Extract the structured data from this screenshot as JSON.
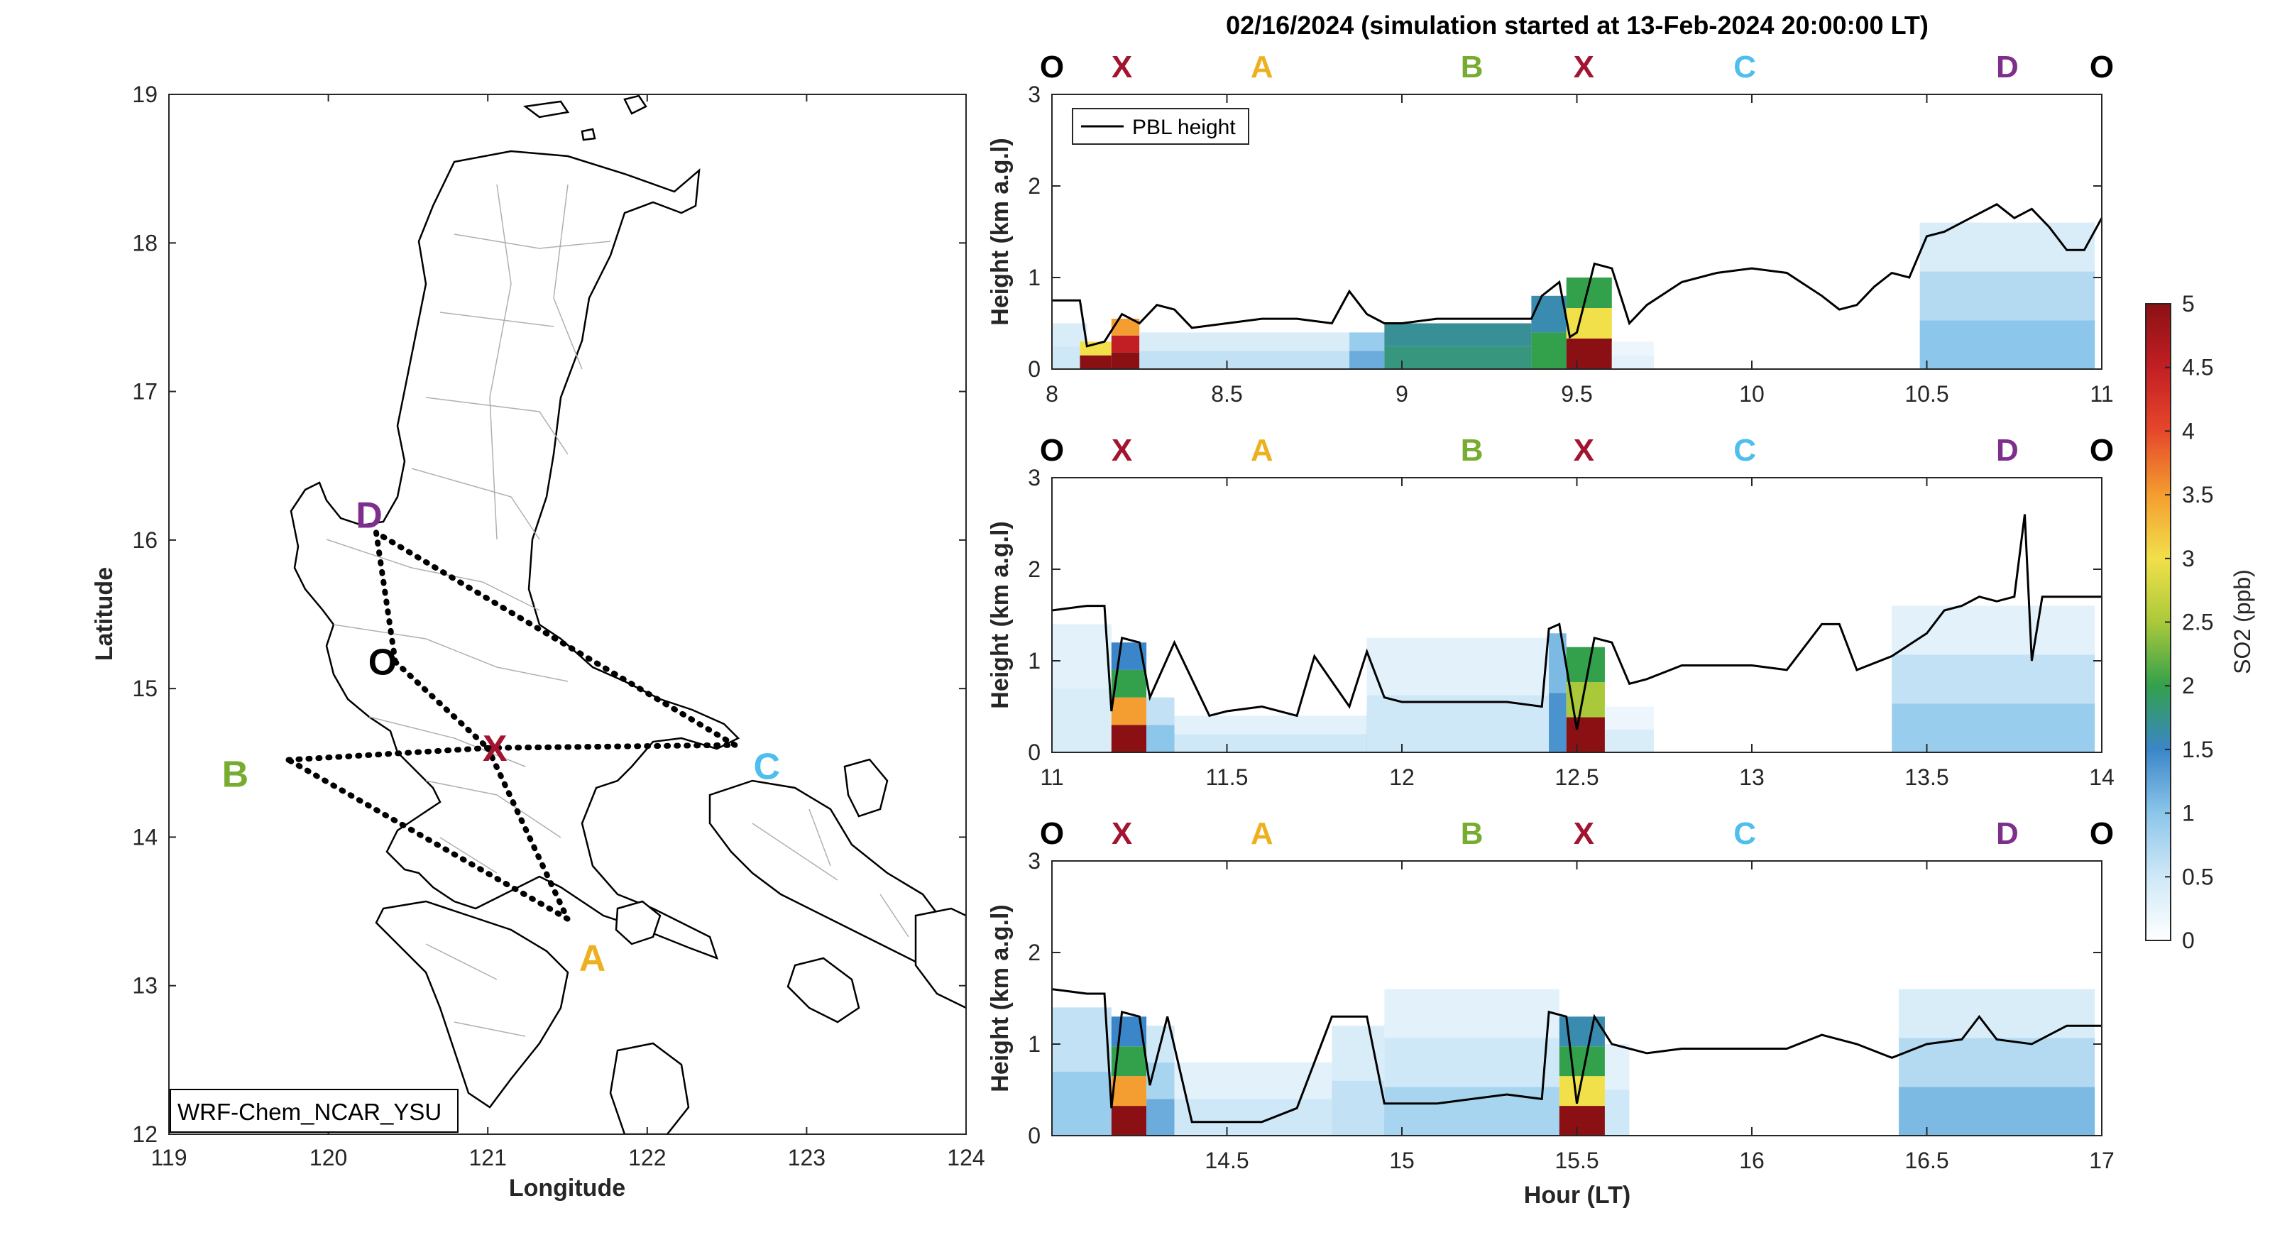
{
  "title": "02/16/2024 (simulation started at 13-Feb-2024 20:00:00 LT)",
  "colors": {
    "O": "#000000",
    "X": "#a2142f",
    "A": "#edb120",
    "B": "#77ac30",
    "C": "#4dbeee",
    "D": "#7e2f8e",
    "pbl": "#000000"
  },
  "map": {
    "xlabel": "Longitude",
    "ylabel": "Latitude",
    "xlim": [
      119,
      124
    ],
    "ylim": [
      12,
      19
    ],
    "xticks": [
      119,
      120,
      121,
      122,
      123,
      124
    ],
    "yticks": [
      12,
      13,
      14,
      15,
      16,
      17,
      18,
      19
    ],
    "model_label": "WRF-Chem_NCAR_YSU",
    "points": [
      {
        "id": "O",
        "label": "O",
        "lon": 120.42,
        "lat": 15.18
      },
      {
        "id": "X",
        "label": "X",
        "lon": 121.0,
        "lat": 14.6
      },
      {
        "id": "A",
        "label": "A",
        "lon": 121.5,
        "lat": 13.45
      },
      {
        "id": "B",
        "label": "B",
        "lon": 119.75,
        "lat": 14.52
      },
      {
        "id": "C",
        "label": "C",
        "lon": 122.55,
        "lat": 14.62
      },
      {
        "id": "D",
        "label": "D",
        "lon": 120.3,
        "lat": 16.05
      }
    ],
    "route": [
      "O",
      "X",
      "A",
      "B",
      "X",
      "C",
      "D",
      "O"
    ]
  },
  "chart_data": [
    {
      "type": "heatmap",
      "ylabel": "Height (km a.g.l)",
      "xlim": [
        8,
        11
      ],
      "ylim": [
        0,
        3
      ],
      "xticks": [
        8,
        8.5,
        9,
        9.5,
        10,
        10.5,
        11
      ],
      "yticks": [
        0,
        1,
        2,
        3
      ],
      "legend": {
        "label": "PBL height",
        "placement": "top-left"
      },
      "route_labels": [
        {
          "label": "O",
          "x": 8.0
        },
        {
          "label": "X",
          "x": 8.2
        },
        {
          "label": "A",
          "x": 8.6
        },
        {
          "label": "B",
          "x": 9.2
        },
        {
          "label": "X",
          "x": 9.52
        },
        {
          "label": "C",
          "x": 9.98
        },
        {
          "label": "D",
          "x": 10.73
        },
        {
          "label": "O",
          "x": 11.0
        }
      ],
      "pbl": {
        "x": [
          8.0,
          8.08,
          8.1,
          8.15,
          8.2,
          8.25,
          8.3,
          8.35,
          8.4,
          8.5,
          8.6,
          8.7,
          8.8,
          8.85,
          8.9,
          8.95,
          9.0,
          9.1,
          9.2,
          9.3,
          9.37,
          9.4,
          9.45,
          9.48,
          9.5,
          9.55,
          9.6,
          9.65,
          9.7,
          9.8,
          9.9,
          10.0,
          10.1,
          10.2,
          10.25,
          10.3,
          10.35,
          10.4,
          10.45,
          10.5,
          10.55,
          10.6,
          10.65,
          10.7,
          10.75,
          10.8,
          10.85,
          10.9,
          10.95,
          11.0
        ],
        "y": [
          0.75,
          0.75,
          0.25,
          0.3,
          0.6,
          0.5,
          0.7,
          0.65,
          0.45,
          0.5,
          0.55,
          0.55,
          0.5,
          0.85,
          0.6,
          0.5,
          0.5,
          0.55,
          0.55,
          0.55,
          0.55,
          0.8,
          0.95,
          0.35,
          0.4,
          1.15,
          1.1,
          0.5,
          0.7,
          0.95,
          1.05,
          1.1,
          1.05,
          0.8,
          0.65,
          0.7,
          0.9,
          1.05,
          1.0,
          1.45,
          1.5,
          1.6,
          1.7,
          1.8,
          1.65,
          1.75,
          1.55,
          1.3,
          1.3,
          1.65
        ]
      },
      "so2_blocks": [
        {
          "x0": 8.0,
          "x1": 8.1,
          "ztop": 0.5,
          "values": [
            0.5,
            0.4
          ]
        },
        {
          "x0": 8.08,
          "x1": 8.17,
          "ztop": 0.3,
          "values": [
            5,
            3
          ]
        },
        {
          "x0": 8.17,
          "x1": 8.25,
          "ztop": 0.55,
          "values": [
            5,
            4.5,
            3.5
          ]
        },
        {
          "x0": 8.25,
          "x1": 8.85,
          "ztop": 0.4,
          "values": [
            0.6,
            0.4
          ]
        },
        {
          "x0": 8.85,
          "x1": 8.95,
          "ztop": 0.4,
          "values": [
            1.2,
            0.9
          ]
        },
        {
          "x0": 8.95,
          "x1": 9.37,
          "ztop": 0.5,
          "values": [
            1.8,
            1.7
          ]
        },
        {
          "x0": 9.37,
          "x1": 9.47,
          "ztop": 0.8,
          "values": [
            2,
            1.6
          ]
        },
        {
          "x0": 9.47,
          "x1": 9.6,
          "ztop": 1.0,
          "values": [
            5,
            3,
            2
          ]
        },
        {
          "x0": 9.6,
          "x1": 9.72,
          "ztop": 0.3,
          "values": [
            0.3,
            0.2
          ]
        },
        {
          "x0": 10.48,
          "x1": 10.98,
          "ztop": 1.6,
          "values": [
            1.0,
            0.7,
            0.4
          ]
        }
      ]
    },
    {
      "type": "heatmap",
      "ylabel": "Height (km a.g.l)",
      "xlim": [
        11,
        14
      ],
      "ylim": [
        0,
        3
      ],
      "xticks": [
        11,
        11.5,
        12,
        12.5,
        13,
        13.5,
        14
      ],
      "yticks": [
        0,
        1,
        2,
        3
      ],
      "route_labels": [
        {
          "label": "O",
          "x": 11.0
        },
        {
          "label": "X",
          "x": 11.2
        },
        {
          "label": "A",
          "x": 11.6
        },
        {
          "label": "B",
          "x": 12.2
        },
        {
          "label": "X",
          "x": 12.52
        },
        {
          "label": "C",
          "x": 12.98
        },
        {
          "label": "D",
          "x": 13.73
        },
        {
          "label": "O",
          "x": 14.0
        }
      ],
      "pbl": {
        "x": [
          11.0,
          11.1,
          11.15,
          11.17,
          11.2,
          11.25,
          11.28,
          11.35,
          11.45,
          11.5,
          11.6,
          11.7,
          11.75,
          11.85,
          11.9,
          11.95,
          12.0,
          12.1,
          12.2,
          12.3,
          12.4,
          12.42,
          12.45,
          12.5,
          12.55,
          12.6,
          12.65,
          12.7,
          12.8,
          12.9,
          13.0,
          13.1,
          13.2,
          13.25,
          13.3,
          13.4,
          13.5,
          13.55,
          13.6,
          13.65,
          13.7,
          13.75,
          13.78,
          13.8,
          13.83,
          13.9,
          14.0
        ],
        "y": [
          1.55,
          1.6,
          1.6,
          0.45,
          1.25,
          1.2,
          0.6,
          1.2,
          0.4,
          0.45,
          0.5,
          0.4,
          1.05,
          0.5,
          1.1,
          0.6,
          0.55,
          0.55,
          0.55,
          0.55,
          0.5,
          1.35,
          1.4,
          0.25,
          1.25,
          1.2,
          0.75,
          0.8,
          0.95,
          0.95,
          0.95,
          0.9,
          1.4,
          1.4,
          0.9,
          1.05,
          1.3,
          1.55,
          1.6,
          1.7,
          1.65,
          1.7,
          2.6,
          1.0,
          1.7,
          1.7,
          1.7
        ]
      },
      "so2_blocks": [
        {
          "x0": 11.0,
          "x1": 11.17,
          "ztop": 1.4,
          "values": [
            0.4,
            0.3
          ]
        },
        {
          "x0": 11.17,
          "x1": 11.27,
          "ztop": 1.2,
          "values": [
            5,
            3.5,
            2,
            1.5
          ]
        },
        {
          "x0": 11.27,
          "x1": 11.35,
          "ztop": 0.6,
          "values": [
            1.0,
            0.6
          ]
        },
        {
          "x0": 11.35,
          "x1": 11.9,
          "ztop": 0.4,
          "values": [
            0.5,
            0.3
          ]
        },
        {
          "x0": 11.9,
          "x1": 12.42,
          "ztop": 0.5,
          "values": [
            1.4,
            1.1
          ]
        },
        {
          "x0": 11.9,
          "x1": 12.42,
          "ztop": 1.25,
          "values": [
            0.5,
            0.3
          ]
        },
        {
          "x0": 12.42,
          "x1": 12.47,
          "ztop": 1.3,
          "values": [
            1.4,
            1.1
          ]
        },
        {
          "x0": 12.47,
          "x1": 12.58,
          "ztop": 1.15,
          "values": [
            5,
            2.5,
            2
          ]
        },
        {
          "x0": 12.58,
          "x1": 12.72,
          "ztop": 0.5,
          "values": [
            0.4,
            0.2
          ]
        },
        {
          "x0": 13.4,
          "x1": 13.98,
          "ztop": 1.6,
          "values": [
            0.9,
            0.6,
            0.3
          ]
        }
      ]
    },
    {
      "type": "heatmap",
      "ylabel": "Height (km a.g.l)",
      "xlabel": "Hour (LT)",
      "xlim": [
        14,
        17
      ],
      "ylim": [
        0,
        3
      ],
      "xticks": [
        14.5,
        15,
        15.5,
        16,
        16.5,
        17
      ],
      "yticks": [
        0,
        1,
        2,
        3
      ],
      "route_labels": [
        {
          "label": "O",
          "x": 14.0
        },
        {
          "label": "X",
          "x": 14.2
        },
        {
          "label": "A",
          "x": 14.6
        },
        {
          "label": "B",
          "x": 15.2
        },
        {
          "label": "X",
          "x": 15.52
        },
        {
          "label": "C",
          "x": 15.98
        },
        {
          "label": "D",
          "x": 16.73
        },
        {
          "label": "O",
          "x": 17.0
        }
      ],
      "pbl": {
        "x": [
          14.0,
          14.1,
          14.15,
          14.17,
          14.2,
          14.25,
          14.28,
          14.33,
          14.4,
          14.45,
          14.5,
          14.6,
          14.7,
          14.8,
          14.85,
          14.9,
          14.95,
          15.0,
          15.1,
          15.2,
          15.3,
          15.4,
          15.42,
          15.47,
          15.5,
          15.55,
          15.6,
          15.7,
          15.8,
          15.9,
          16.0,
          16.1,
          16.2,
          16.3,
          16.4,
          16.5,
          16.6,
          16.65,
          16.7,
          16.8,
          16.9,
          17.0
        ],
        "y": [
          1.6,
          1.55,
          1.55,
          0.3,
          1.35,
          1.3,
          0.55,
          1.3,
          0.15,
          0.15,
          0.15,
          0.15,
          0.3,
          1.3,
          1.3,
          1.3,
          0.35,
          0.35,
          0.35,
          0.4,
          0.45,
          0.4,
          1.35,
          1.3,
          0.35,
          1.3,
          1.0,
          0.9,
          0.95,
          0.95,
          0.95,
          0.95,
          1.1,
          1.0,
          0.85,
          1.0,
          1.05,
          1.3,
          1.05,
          1.0,
          1.2,
          1.2
        ]
      },
      "so2_blocks": [
        {
          "x0": 14.0,
          "x1": 14.17,
          "ztop": 1.4,
          "values": [
            0.9,
            0.6
          ]
        },
        {
          "x0": 14.17,
          "x1": 14.27,
          "ztop": 1.3,
          "values": [
            5,
            3.5,
            2,
            1.5
          ]
        },
        {
          "x0": 14.27,
          "x1": 14.35,
          "ztop": 1.2,
          "values": [
            1.2,
            0.8,
            0.5
          ]
        },
        {
          "x0": 14.35,
          "x1": 14.8,
          "ztop": 0.8,
          "values": [
            0.5,
            0.3
          ]
        },
        {
          "x0": 14.8,
          "x1": 14.95,
          "ztop": 1.2,
          "values": [
            0.6,
            0.4
          ]
        },
        {
          "x0": 14.95,
          "x1": 15.45,
          "ztop": 0.4,
          "values": [
            1.4,
            1.0
          ]
        },
        {
          "x0": 14.95,
          "x1": 15.45,
          "ztop": 1.6,
          "values": [
            0.8,
            0.5,
            0.3
          ]
        },
        {
          "x0": 15.45,
          "x1": 15.58,
          "ztop": 1.3,
          "values": [
            5,
            3,
            2,
            1.6
          ]
        },
        {
          "x0": 15.58,
          "x1": 15.65,
          "ztop": 1.0,
          "values": [
            0.5,
            0.3
          ]
        },
        {
          "x0": 16.42,
          "x1": 16.98,
          "ztop": 1.6,
          "values": [
            1.1,
            0.7,
            0.4
          ]
        }
      ]
    }
  ],
  "colorbar": {
    "label": "SO2 (ppb)",
    "min": 0,
    "max": 5,
    "ticks": [
      0,
      0.5,
      1,
      1.5,
      2,
      2.5,
      3,
      3.5,
      4,
      4.5,
      5
    ]
  }
}
